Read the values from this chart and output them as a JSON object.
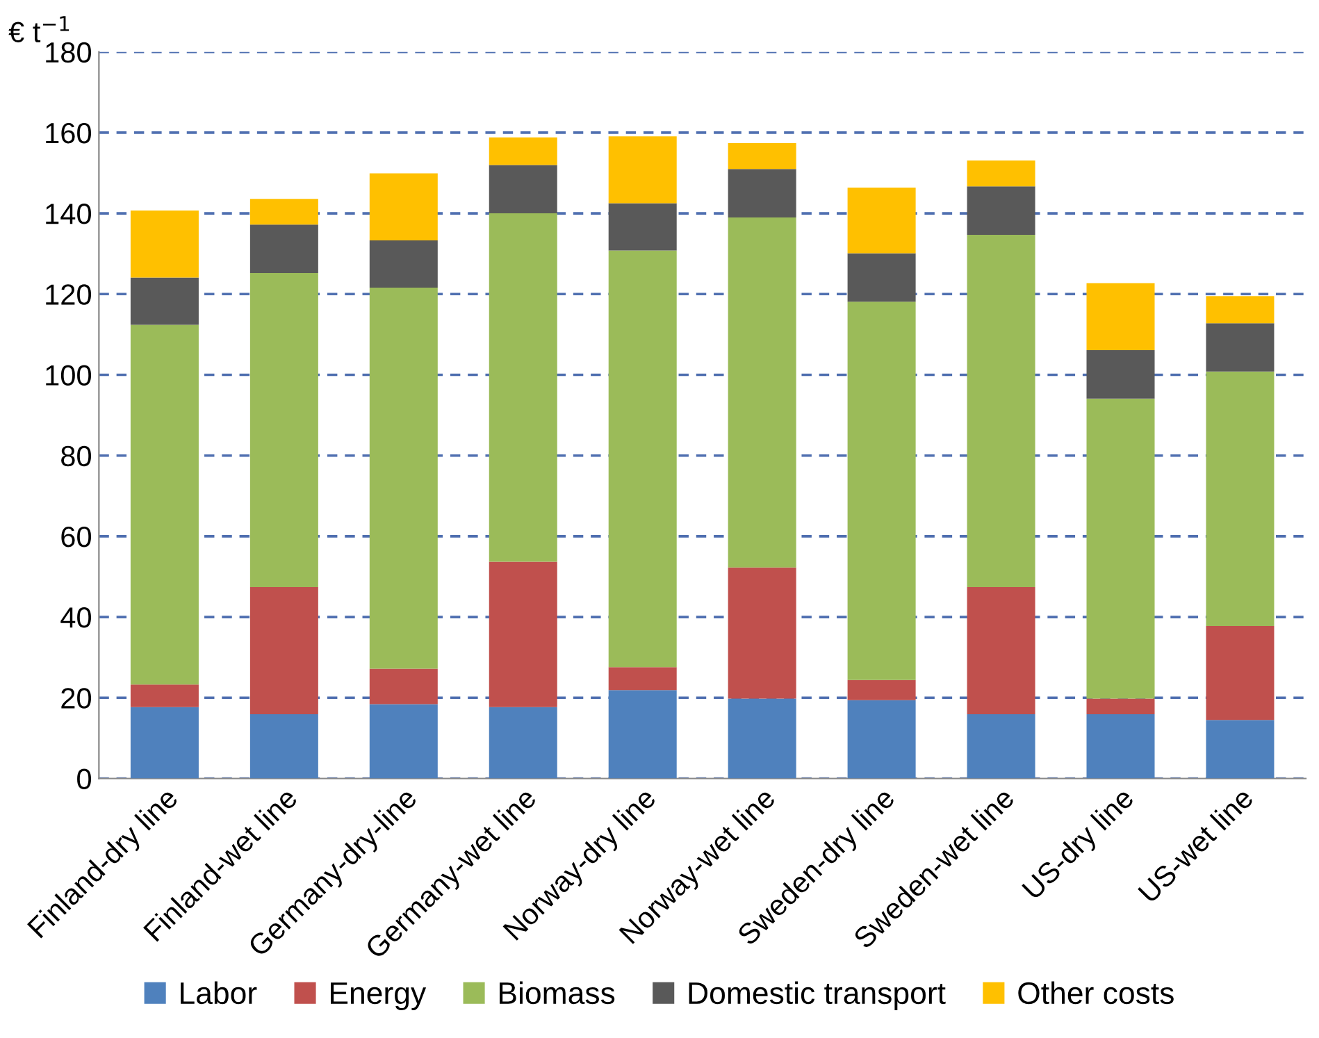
{
  "chart_data": {
    "type": "bar",
    "stacked": true,
    "ylabel": "€ t$^{−1}$",
    "categories": [
      "Finland-dry line",
      "Finland-wet line",
      "Germany-dry-line",
      "Germany-wet line",
      "Norway-dry line",
      "Norway-wet line",
      "Sweden-dry line",
      "Sweden-wet line",
      "US-dry line",
      "US-wet line"
    ],
    "series": [
      {
        "name": "Labor",
        "color": "#4f81bd",
        "values": [
          17.7,
          15.9,
          18.4,
          17.7,
          21.9,
          19.8,
          19.4,
          15.9,
          15.9,
          14.5
        ]
      },
      {
        "name": "Energy",
        "color": "#c0504d",
        "values": [
          5.6,
          31.5,
          8.8,
          36.0,
          5.7,
          32.5,
          5.0,
          31.5,
          3.9,
          23.3
        ]
      },
      {
        "name": "Biomass",
        "color": "#9bbb59",
        "values": [
          89.1,
          77.8,
          94.4,
          86.3,
          103.2,
          86.7,
          93.7,
          87.3,
          74.3,
          63.0
        ]
      },
      {
        "name": "Domestic transport",
        "color": "#595959",
        "values": [
          11.7,
          12.0,
          11.7,
          12.0,
          11.7,
          12.0,
          12.0,
          12.0,
          12.0,
          12.0
        ]
      },
      {
        "name": "Other costs",
        "color": "#ffc000",
        "values": [
          16.6,
          6.4,
          16.6,
          6.8,
          16.6,
          6.4,
          16.3,
          6.4,
          16.6,
          6.7
        ]
      }
    ],
    "ylim": [
      0,
      180
    ],
    "yticks": [
      0,
      20,
      40,
      60,
      80,
      100,
      120,
      140,
      160,
      180
    ],
    "grid": "y",
    "legend": "bottom"
  }
}
